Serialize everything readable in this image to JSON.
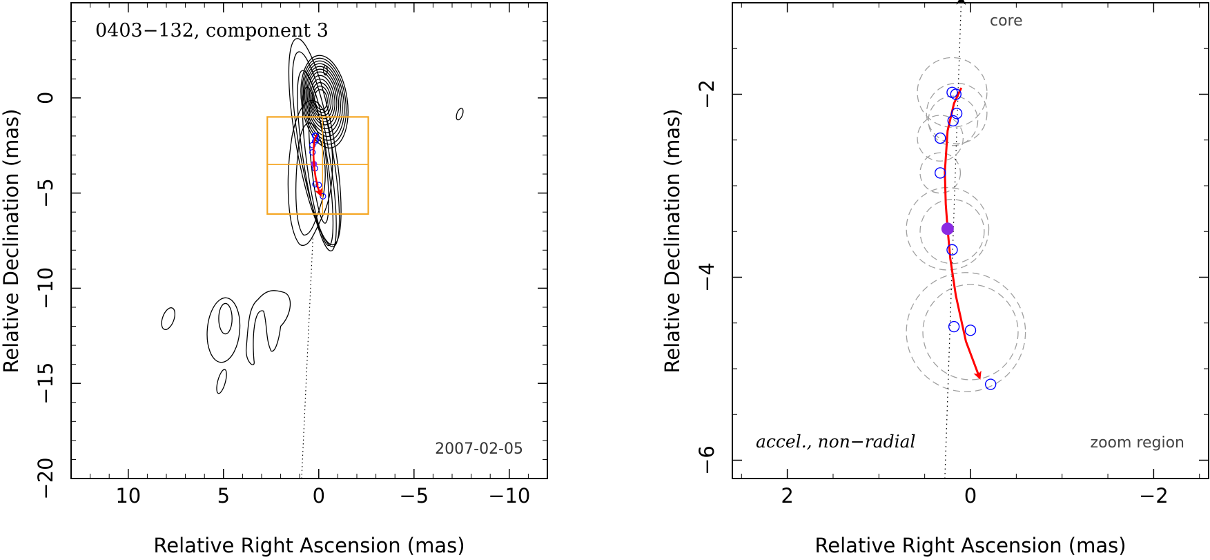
{
  "chart_data": [
    {
      "type": "contour",
      "panel": "left",
      "title": "0403−132, component 3",
      "epoch": "2007-02-05",
      "xlabel": "Relative Right Ascension (mas)",
      "ylabel": "Relative Declination (mas)",
      "xlim": [
        13,
        -12
      ],
      "ylim": [
        -20,
        5
      ],
      "xticks": [
        10,
        5,
        0,
        -5,
        -10
      ],
      "xtick_labels": [
        "10",
        "5",
        "0",
        "−5",
        "−10"
      ],
      "yticks": [
        0,
        -5,
        -10,
        -15,
        -20
      ],
      "ytick_labels": [
        "0",
        "−5",
        "−10",
        "−15",
        "−20"
      ],
      "zoom_box": {
        "x": [
          2.7,
          -2.6
        ],
        "y": [
          -1.0,
          -6.1
        ],
        "cross_y": -3.5,
        "cross_x": -0.2
      },
      "contour_levels": 12,
      "colors": {
        "contours": "#000000",
        "box": "#F5A623",
        "track": "#FF0000",
        "points": "#0000FF"
      }
    },
    {
      "type": "scatter",
      "panel": "right",
      "xlabel": "Relative Right Ascension (mas)",
      "ylabel": "Relative Declination (mas)",
      "xlim": [
        2.6,
        -2.6
      ],
      "ylim": [
        -6.2,
        -1.0
      ],
      "xticks": [
        2,
        0,
        -2
      ],
      "xtick_labels": [
        "2",
        "0",
        "−2"
      ],
      "yticks": [
        -2,
        -4,
        -6
      ],
      "ytick_labels": [
        "−2",
        "−4",
        "−6"
      ],
      "annotations": {
        "top": "core",
        "bottom_left": "accel., non−radial",
        "bottom_right": "zoom region"
      },
      "points": {
        "x": [
          0.2,
          0.16,
          0.15,
          0.19,
          0.33,
          0.33,
          0.2,
          0.18,
          0.0,
          -0.22
        ],
        "y": [
          -1.98,
          -2.0,
          -2.21,
          -2.29,
          -2.48,
          -2.86,
          -3.7,
          -4.54,
          -4.58,
          -5.17
        ]
      },
      "filled_point": {
        "x": 0.25,
        "y": -3.47
      },
      "track": {
        "x": [
          0.1,
          0.18,
          0.25,
          0.28,
          0.27,
          0.25,
          0.22,
          0.16,
          0.05,
          -0.1
        ],
        "y": [
          -1.93,
          -2.1,
          -2.4,
          -2.85,
          -3.2,
          -3.47,
          -3.8,
          -4.2,
          -4.7,
          -5.1
        ]
      },
      "core_direction": {
        "x": [
          0.28,
          0.1
        ],
        "y": [
          -6.2,
          -0.9
        ]
      },
      "error_circles": [
        {
          "x": 0.2,
          "y": -1.98,
          "r": 0.38
        },
        {
          "x": 0.15,
          "y": -2.21,
          "r": 0.33
        },
        {
          "x": 0.19,
          "y": -2.29,
          "r": 0.27
        },
        {
          "x": 0.33,
          "y": -2.48,
          "r": 0.25
        },
        {
          "x": 0.33,
          "y": -2.86,
          "r": 0.22
        },
        {
          "x": 0.25,
          "y": -3.47,
          "r": 0.45
        },
        {
          "x": 0.2,
          "y": -3.5,
          "r": 0.35
        },
        {
          "x": 0.05,
          "y": -4.6,
          "r": 0.65
        },
        {
          "x": 0.0,
          "y": -4.6,
          "r": 0.52
        }
      ],
      "colors": {
        "points": "#0000FF",
        "filled_point": "#8A2BE2",
        "track": "#FF0000",
        "circles": "#A0A0A0"
      }
    }
  ]
}
